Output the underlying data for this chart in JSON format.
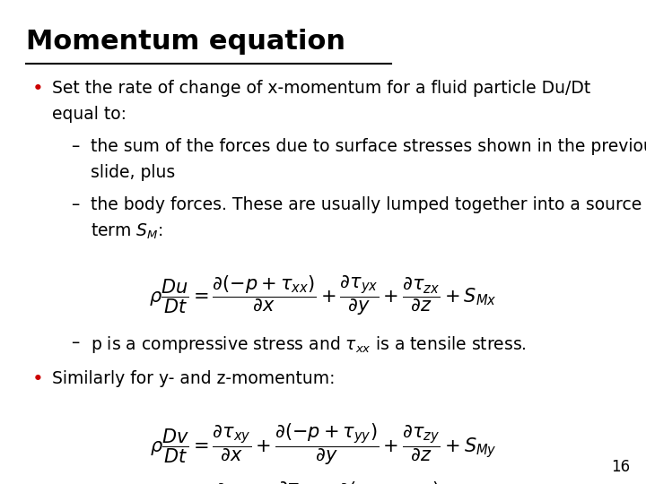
{
  "title": "Momentum equation",
  "background_color": "#ffffff",
  "title_color": "#000000",
  "text_color": "#000000",
  "bullet_color": "#cc0000",
  "title_fontsize": 22,
  "body_fontsize": 13.5,
  "math_fontsize": 13,
  "page_number": "16",
  "bullet1_line1": "Set the rate of change of x-momentum for a fluid particle Du/Dt",
  "bullet1_line2": "equal to:",
  "sub1_line1": "the sum of the forces due to surface stresses shown in the previous",
  "sub1_line2": "slide, plus",
  "sub2_line1": "the body forces. These are usually lumped together into a source",
  "sub2_line2": "term $S_{M}$:",
  "eq1": "$\\rho\\dfrac{Du}{Dt} = \\dfrac{\\partial(-p+\\tau_{xx})}{\\partial x} + \\dfrac{\\partial\\tau_{yx}}{\\partial y} + \\dfrac{\\partial\\tau_{zx}}{\\partial z} + S_{Mx}$",
  "note1": "p is a compressive stress and $\\tau_{xx}$ is a tensile stress.",
  "bullet2": "Similarly for y- and z-momentum:",
  "eq2": "$\\rho\\dfrac{Dv}{Dt} = \\dfrac{\\partial\\tau_{xy}}{\\partial x} + \\dfrac{\\partial(-p+\\tau_{yy})}{\\partial y} + \\dfrac{\\partial\\tau_{zy}}{\\partial z} + S_{My}$",
  "eq3": "$\\rho\\dfrac{Dw}{Dt} = \\dfrac{\\partial\\tau_{xz}}{\\partial x} + \\dfrac{\\partial\\tau_{yz}}{\\partial y} + \\dfrac{\\partial(-p+\\tau_{zz})}{\\partial z} + S_{Mz}$"
}
